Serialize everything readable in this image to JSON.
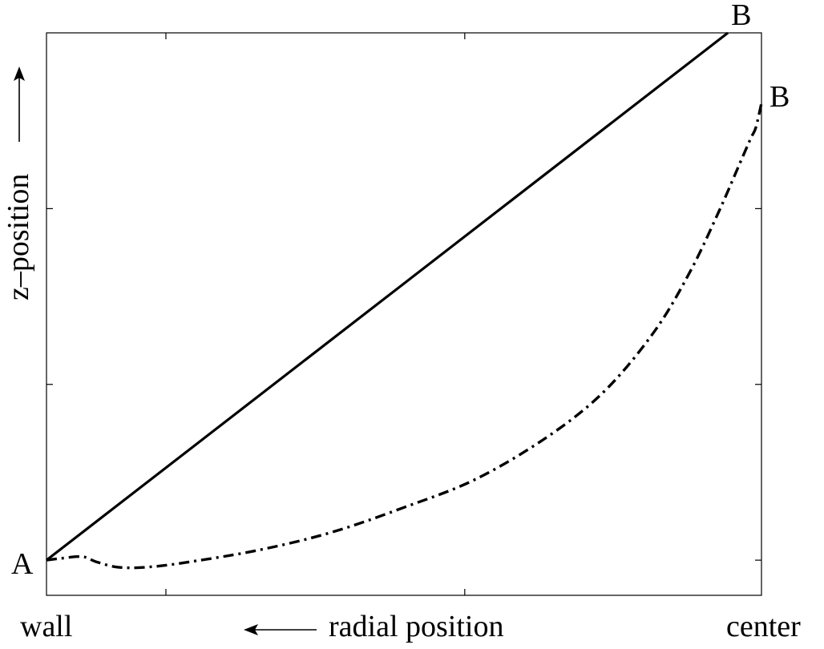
{
  "chart_data": {
    "type": "line",
    "title": "",
    "xlabel": "radial position",
    "ylabel": "z–position",
    "x_left_label": "wall",
    "x_right_label": "center",
    "xlim": [
      0,
      1
    ],
    "ylim": [
      -0.2,
      3
    ],
    "grid": false,
    "series": [
      {
        "style": "solid",
        "points": [
          [
            0,
            0
          ],
          [
            0.953,
            3
          ]
        ],
        "start_label": "A",
        "end_label": "B"
      },
      {
        "style": "dash-dot",
        "points": [
          [
            0,
            0
          ],
          [
            0.02,
            0.01
          ],
          [
            0.05,
            0.02
          ],
          [
            0.07,
            -0.01
          ],
          [
            0.1,
            -0.04
          ],
          [
            0.14,
            -0.04
          ],
          [
            0.2,
            -0.01
          ],
          [
            0.3,
            0.06
          ],
          [
            0.4,
            0.16
          ],
          [
            0.5,
            0.3
          ],
          [
            0.6,
            0.46
          ],
          [
            0.7,
            0.7
          ],
          [
            0.78,
            0.96
          ],
          [
            0.85,
            1.3
          ],
          [
            0.9,
            1.64
          ],
          [
            0.94,
            1.98
          ],
          [
            0.97,
            2.26
          ],
          [
            0.985,
            2.4
          ],
          [
            0.992,
            2.46
          ],
          [
            1.0,
            2.6
          ]
        ],
        "end_label": "B"
      }
    ]
  }
}
